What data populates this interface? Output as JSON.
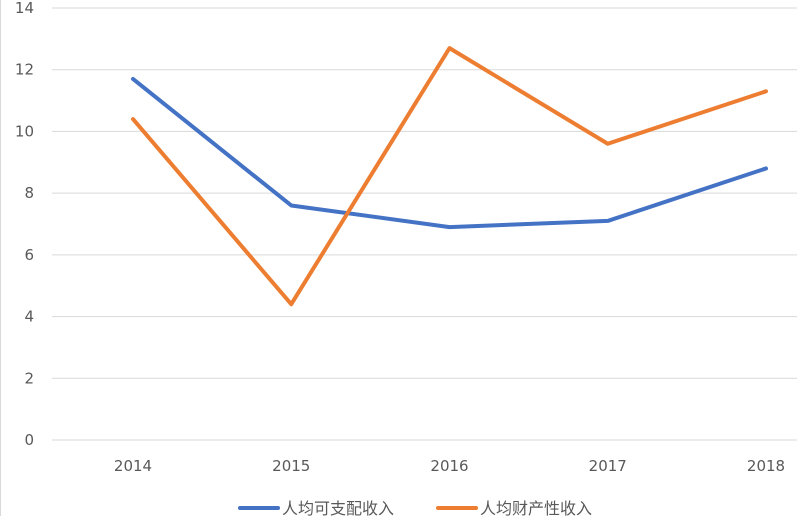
{
  "chart_data": {
    "type": "line",
    "categories": [
      "2014",
      "2015",
      "2016",
      "2017",
      "2018"
    ],
    "series": [
      {
        "name": "人均可支配收入",
        "color": "#4472C4",
        "values": [
          11.7,
          7.6,
          6.9,
          7.1,
          8.8
        ]
      },
      {
        "name": "人均财产性收入",
        "color": "#ED7D31",
        "values": [
          10.4,
          4.4,
          12.7,
          9.6,
          11.3
        ]
      }
    ],
    "y_ticks": [
      "0",
      "2",
      "4",
      "6",
      "8",
      "10",
      "12",
      "14"
    ],
    "ylim": [
      0,
      14
    ],
    "grid": true,
    "legend": "bottom"
  }
}
